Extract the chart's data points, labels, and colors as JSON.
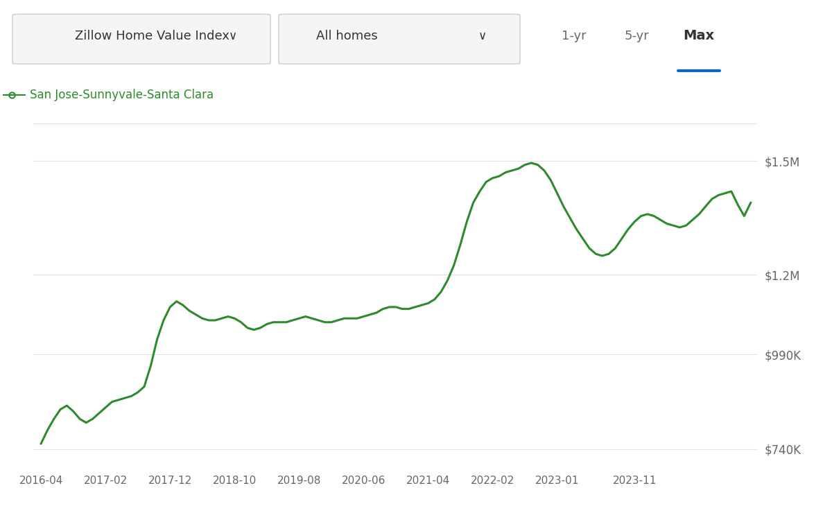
{
  "line_color": "#2d8a2d",
  "line_width": 2.2,
  "background_color": "#ffffff",
  "grid_color": "#e0e0e0",
  "legend_label": "San Jose-Sunnyvale-Santa Clara",
  "legend_marker_color": "#2d8a2d",
  "ytick_labels": [
    "$740K",
    "$990K",
    "$1.2M",
    "$1.5M"
  ],
  "ytick_values": [
    740000,
    990000,
    1200000,
    1500000
  ],
  "ylim": [
    680000,
    1600000
  ],
  "xtick_labels": [
    "2016-04",
    "2017-02",
    "2017-12",
    "2018-10",
    "2019-08",
    "2020-06",
    "2021-04",
    "2022-02",
    "2023-01",
    "2023-11"
  ],
  "header_box1": "Zillow Home Value Index",
  "header_box2": "All homes",
  "header_btn1": "1-yr",
  "header_btn2": "5-yr",
  "header_btn3": "Max",
  "active_btn_color": "#1565c0",
  "text_color_gray": "#666666",
  "text_color_dark": "#333333",
  "data_x": [
    0,
    0.083,
    0.167,
    0.25,
    0.333,
    0.417,
    0.5,
    0.583,
    0.667,
    0.75,
    0.833,
    0.917,
    1.0,
    1.083,
    1.167,
    1.25,
    1.333,
    1.417,
    1.5,
    1.583,
    1.667,
    1.75,
    1.833,
    1.917,
    2.0,
    2.083,
    2.167,
    2.25,
    2.333,
    2.417,
    2.5,
    2.583,
    2.667,
    2.75,
    2.833,
    2.917,
    3.0,
    3.083,
    3.167,
    3.25,
    3.333,
    3.417,
    3.5,
    3.583,
    3.667,
    3.75,
    3.833,
    3.917,
    4.0,
    4.083,
    4.167,
    4.25,
    4.333,
    4.417,
    4.5,
    4.583,
    4.667,
    4.75,
    4.833,
    4.917,
    5.0,
    5.083,
    5.167,
    5.25,
    5.333,
    5.417,
    5.5,
    5.583,
    5.667,
    5.75,
    5.833,
    5.917,
    6.0,
    6.083,
    6.167,
    6.25,
    6.333,
    6.417,
    6.5,
    6.583,
    6.667,
    6.75,
    6.833,
    6.917,
    7.0,
    7.083,
    7.167,
    7.25,
    7.333,
    7.417,
    7.5,
    7.583,
    7.667,
    7.75,
    7.833,
    7.917,
    8.0,
    8.083,
    8.167,
    8.25,
    8.333,
    8.417,
    8.5,
    8.583,
    8.667,
    8.75,
    8.833,
    8.917,
    9.0,
    9.083,
    9.167
  ],
  "data_y": [
    755000,
    790000,
    820000,
    845000,
    855000,
    840000,
    820000,
    810000,
    820000,
    835000,
    850000,
    865000,
    870000,
    875000,
    880000,
    890000,
    905000,
    960000,
    1030000,
    1080000,
    1115000,
    1130000,
    1120000,
    1105000,
    1095000,
    1085000,
    1080000,
    1080000,
    1085000,
    1090000,
    1085000,
    1075000,
    1060000,
    1055000,
    1060000,
    1070000,
    1075000,
    1075000,
    1075000,
    1080000,
    1085000,
    1090000,
    1085000,
    1080000,
    1075000,
    1075000,
    1080000,
    1085000,
    1085000,
    1085000,
    1090000,
    1095000,
    1100000,
    1110000,
    1115000,
    1115000,
    1110000,
    1110000,
    1115000,
    1120000,
    1125000,
    1135000,
    1155000,
    1185000,
    1225000,
    1280000,
    1340000,
    1390000,
    1420000,
    1445000,
    1455000,
    1460000,
    1470000,
    1475000,
    1480000,
    1490000,
    1495000,
    1490000,
    1475000,
    1450000,
    1415000,
    1380000,
    1350000,
    1320000,
    1295000,
    1270000,
    1255000,
    1250000,
    1255000,
    1270000,
    1295000,
    1320000,
    1340000,
    1355000,
    1360000,
    1355000,
    1345000,
    1335000,
    1330000,
    1325000,
    1330000,
    1345000,
    1360000,
    1380000,
    1400000,
    1410000,
    1415000,
    1420000,
    1385000,
    1355000,
    1390000
  ]
}
